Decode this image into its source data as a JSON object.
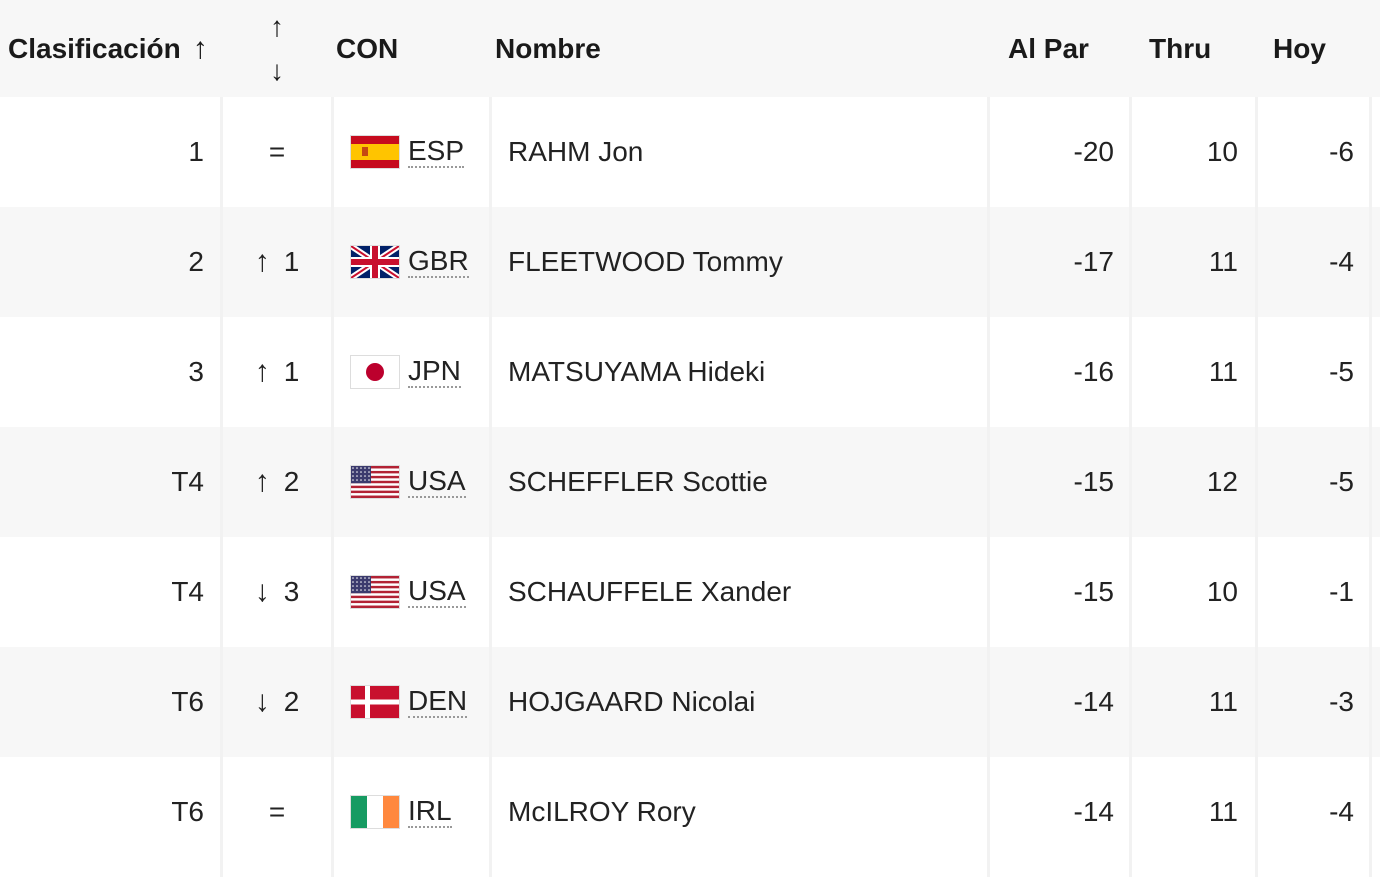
{
  "header": {
    "rank": "Clasificación",
    "rank_sort_icon": "↑",
    "move_up_icon": "↑",
    "move_down_icon": "↓",
    "country": "CON",
    "name": "Nombre",
    "to_par": "Al Par",
    "thru": "Thru",
    "today": "Hoy"
  },
  "rows": [
    {
      "rank": "1",
      "move_icon": "",
      "move": "=",
      "flag": "spain-flag-icon",
      "country": "ESP",
      "name": "RAHM Jon",
      "to_par": "-20",
      "thru": "10",
      "today": "-6"
    },
    {
      "rank": "2",
      "move_icon": "↑",
      "move": "1",
      "flag": "uk-flag-icon",
      "country": "GBR",
      "name": "FLEETWOOD Tommy",
      "to_par": "-17",
      "thru": "11",
      "today": "-4"
    },
    {
      "rank": "3",
      "move_icon": "↑",
      "move": "1",
      "flag": "japan-flag-icon",
      "country": "JPN",
      "name": "MATSUYAMA Hideki",
      "to_par": "-16",
      "thru": "11",
      "today": "-5"
    },
    {
      "rank": "T4",
      "move_icon": "↑",
      "move": "2",
      "flag": "usa-flag-icon",
      "country": "USA",
      "name": "SCHEFFLER Scottie",
      "to_par": "-15",
      "thru": "12",
      "today": "-5"
    },
    {
      "rank": "T4",
      "move_icon": "↓",
      "move": "3",
      "flag": "usa-flag-icon",
      "country": "USA",
      "name": "SCHAUFFELE Xander",
      "to_par": "-15",
      "thru": "10",
      "today": "-1"
    },
    {
      "rank": "T6",
      "move_icon": "↓",
      "move": "2",
      "flag": "denmark-flag-icon",
      "country": "DEN",
      "name": "HOJGAARD Nicolai",
      "to_par": "-14",
      "thru": "11",
      "today": "-3"
    },
    {
      "rank": "T6",
      "move_icon": "",
      "move": "=",
      "flag": "ireland-flag-icon",
      "country": "IRL",
      "name": "McILROY Rory",
      "to_par": "-14",
      "thru": "11",
      "today": "-4"
    }
  ],
  "colors": {
    "row_alt": "#f7f7f7",
    "text": "#222222"
  }
}
